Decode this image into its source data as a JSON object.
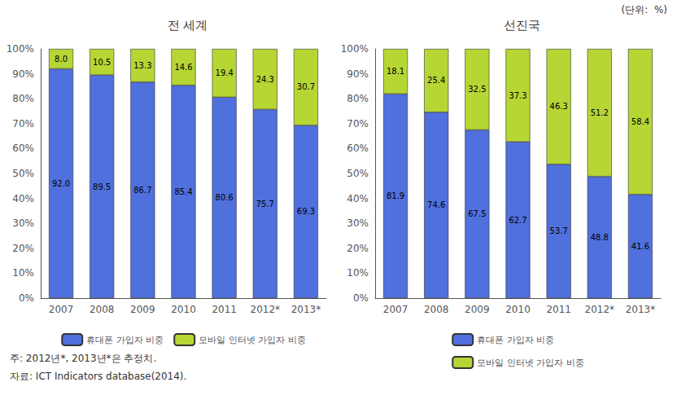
{
  "chart_data": [
    {
      "type": "bar",
      "stacked": true,
      "title": "전 세계",
      "categories": [
        "2007",
        "2008",
        "2009",
        "2010",
        "2011",
        "2012*",
        "2013*"
      ],
      "series": [
        {
          "name": "휴대폰 가입자 비중",
          "values": [
            92.0,
            89.5,
            86.7,
            85.4,
            80.6,
            75.7,
            69.3
          ],
          "value_labels": [
            "92.0",
            "89.5",
            "86.7",
            "85.4",
            "80.6",
            "75.7",
            "69.3"
          ]
        },
        {
          "name": "모바일 인터넷 가입자 비중",
          "values": [
            8.0,
            10.5,
            13.3,
            14.6,
            19.4,
            24.3,
            30.7
          ],
          "value_labels": [
            "8.0",
            "10.5",
            "13.3",
            "14.6",
            "19.4",
            "24.3",
            "30.7"
          ]
        }
      ],
      "ylim": [
        0,
        100
      ],
      "yticks": [
        {
          "value": 0,
          "label": "0%"
        },
        {
          "value": 10,
          "label": "10%"
        },
        {
          "value": 20,
          "label": "20%"
        },
        {
          "value": 30,
          "label": "30%"
        },
        {
          "value": 40,
          "label": "40%"
        },
        {
          "value": 50,
          "label": "50%"
        },
        {
          "value": 60,
          "label": "60%"
        },
        {
          "value": 70,
          "label": "70%"
        },
        {
          "value": 80,
          "label": "80%"
        },
        {
          "value": 90,
          "label": "90%"
        },
        {
          "value": 100,
          "label": "100%"
        }
      ],
      "grid": false,
      "legend": "bottom",
      "data_labels": true,
      "annotations": [
        "(단위:  %)",
        "주: 2012년*, 2013년*은 추정치.",
        "자료: ICT Indicators database(2014)."
      ]
    },
    {
      "type": "bar",
      "stacked": true,
      "title": "선진국",
      "categories": [
        "2007",
        "2008",
        "2009",
        "2010",
        "2011",
        "2012*",
        "2013*"
      ],
      "series": [
        {
          "name": "휴대폰 가입자 비중",
          "values": [
            81.9,
            74.6,
            67.5,
            62.7,
            53.7,
            48.8,
            41.6
          ],
          "value_labels": [
            "81.9",
            "74.6",
            "67.5",
            "62.7",
            "53.7",
            "48.8",
            "41.6"
          ]
        },
        {
          "name": "모바일 인터넷 가입자 비중",
          "values": [
            18.1,
            25.4,
            32.5,
            37.3,
            46.3,
            51.2,
            58.4
          ],
          "value_labels": [
            "18.1",
            "25.4",
            "32.5",
            "37.3",
            "46.3",
            "51.2",
            "58.4"
          ]
        }
      ],
      "ylim": [
        0,
        100
      ],
      "yticks": [
        {
          "value": 0,
          "label": "0%"
        },
        {
          "value": 10,
          "label": "10%"
        },
        {
          "value": 20,
          "label": "20%"
        },
        {
          "value": 30,
          "label": "30%"
        },
        {
          "value": 40,
          "label": "40%"
        },
        {
          "value": 50,
          "label": "50%"
        },
        {
          "value": 60,
          "label": "60%"
        },
        {
          "value": 70,
          "label": "70%"
        },
        {
          "value": 80,
          "label": "80%"
        },
        {
          "value": 90,
          "label": "90%"
        },
        {
          "value": 100,
          "label": "100%"
        }
      ],
      "grid": false,
      "legend": "bottom",
      "data_labels": true
    }
  ]
}
